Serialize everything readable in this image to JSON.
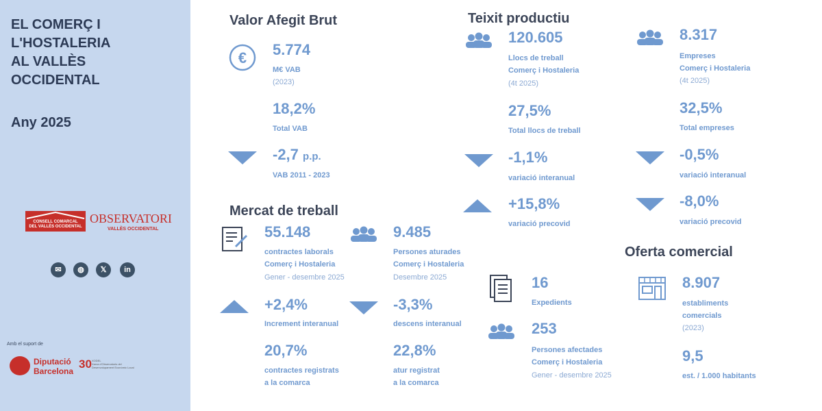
{
  "sidebar": {
    "title_lines": [
      "EL COMERÇ I",
      "L'HOSTALERIA",
      "AL VALLÈS",
      "OCCIDENTAL"
    ],
    "year": "Any 2025",
    "logo_consell_line1": "CONSELL COMARCAL",
    "logo_consell_line2": "DEL VALLÈS OCCIDENTAL",
    "logo_observatori": "OBSERVATORI",
    "logo_observatori_sub": "VALLÈS OCCIDENTAL",
    "social": [
      "email-icon",
      "web-icon",
      "x-icon",
      "linkedin-icon"
    ],
    "support_label": "Amb el suport de",
    "diputacio_line1": "Diputació",
    "diputacio_line2": "Barcelona",
    "tenth_number": "30",
    "tenth_label_1": "XODEL",
    "tenth_label_2": "Xarxa d'Observatoris del",
    "tenth_label_3": "Desenvolupament Econòmic Local"
  },
  "vab": {
    "heading": "Valor Afegit Brut",
    "value": "5.774",
    "label": "M€ VAB",
    "sub": "(2023)",
    "share_value": "18,2%",
    "share_label": "Total VAB",
    "change_value": "-2,7",
    "change_unit": "p.p.",
    "change_label": "VAB 2011 - 2023"
  },
  "teixit": {
    "heading": "Teixit productiu",
    "jobs_value": "120.605",
    "jobs_label1": "Llocs de treball",
    "jobs_label2": "Comerç i Hostaleria",
    "jobs_sub": "(4t 2025)",
    "jobs_share": "27,5%",
    "jobs_share_label": "Total llocs de treball",
    "jobs_yoy": "-1,1%",
    "jobs_yoy_label": "variació interanual",
    "jobs_precovid": "+15,8%",
    "jobs_precovid_label": "variació precovid",
    "firms_value": "8.317",
    "firms_label1": "Empreses",
    "firms_label2": "Comerç i Hostaleria",
    "firms_sub": "(4t 2025)",
    "firms_share": "32,5%",
    "firms_share_label": "Total empreses",
    "firms_yoy": "-0,5%",
    "firms_yoy_label": "variació interanual",
    "firms_precovid": "-8,0%",
    "firms_precovid_label": "variació precovid"
  },
  "mercat": {
    "heading": "Mercat de treball",
    "contracts_value": "55.148",
    "contracts_label1": "contractes laborals",
    "contracts_label2": "Comerç i Hostaleria",
    "contracts_sub": "Gener - desembre 2025",
    "contracts_change": "+2,4%",
    "contracts_change_label": "Increment interanual",
    "contracts_share": "20,7%",
    "contracts_share_label1": "contractes registrats",
    "contracts_share_label2": "a la comarca",
    "unemployed_value": "9.485",
    "unemployed_label1": "Persones aturades",
    "unemployed_label2": "Comerç i Hostaleria",
    "unemployed_sub": "Desembre 2025",
    "unemployed_change": "-3,3%",
    "unemployed_change_label": "descens interanual",
    "unemployed_share": "22,8%",
    "unemployed_share_label1": "atur registrat",
    "unemployed_share_label2": "a la comarca"
  },
  "expedients": {
    "count_value": "16",
    "count_label": "Expedients",
    "people_value": "253",
    "people_label1": "Persones afectades",
    "people_label2": "Comerç i Hostaleria",
    "people_sub": "Gener - desembre 2025"
  },
  "oferta": {
    "heading": "Oferta comercial",
    "shops_value": "8.907",
    "shops_label1": "establiments",
    "shops_label2": "comercials",
    "shops_sub": "(2023)",
    "density_value": "9,5",
    "density_label": "est. / 1.000 habitants"
  },
  "colors": {
    "sidebar_bg": "#c6d7ee",
    "accent": "#6f99cf",
    "title": "#2c3a55",
    "heading": "#3b4457",
    "brand_red": "#c62f2a"
  }
}
